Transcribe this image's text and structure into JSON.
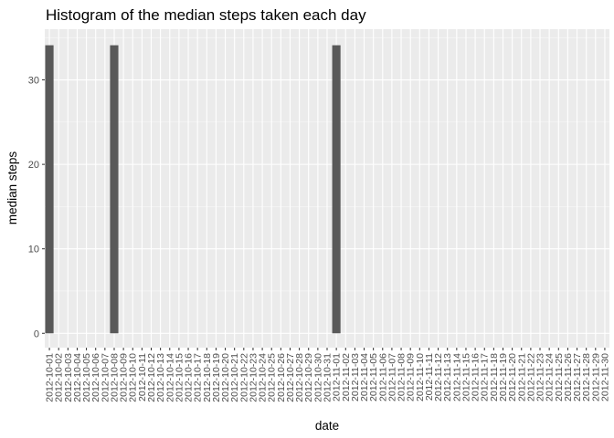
{
  "chart_data": {
    "type": "bar",
    "title": "Histogram of the median steps taken each day",
    "xlabel": "date",
    "ylabel": "median steps",
    "ylim": [
      -1.7,
      36.0
    ],
    "y_ticks": [
      0,
      10,
      20,
      30
    ],
    "grid": true,
    "legend": "none",
    "bar_color": "#595959",
    "panel_background": "#ebebeb",
    "grid_major_color": "#ffffff",
    "categories": [
      "2012-10-01",
      "2012-10-02",
      "2012-10-03",
      "2012-10-04",
      "2012-10-05",
      "2012-10-06",
      "2012-10-07",
      "2012-10-08",
      "2012-10-09",
      "2012-10-10",
      "2012-10-11",
      "2012-10-12",
      "2012-10-13",
      "2012-10-14",
      "2012-10-15",
      "2012-10-16",
      "2012-10-17",
      "2012-10-18",
      "2012-10-19",
      "2012-10-20",
      "2012-10-21",
      "2012-10-22",
      "2012-10-23",
      "2012-10-24",
      "2012-10-25",
      "2012-10-26",
      "2012-10-27",
      "2012-10-28",
      "2012-10-29",
      "2012-10-30",
      "2012-10-31",
      "2012-11-01",
      "2012-11-02",
      "2012-11-03",
      "2012-11-04",
      "2012-11-05",
      "2012-11-06",
      "2012-11-07",
      "2012-11-08",
      "2012-11-09",
      "2012-11-10",
      "2012-11-11",
      "2012-11-12",
      "2012-11-13",
      "2012-11-14",
      "2012-11-15",
      "2012-11-16",
      "2012-11-17",
      "2012-11-18",
      "2012-11-19",
      "2012-11-20",
      "2012-11-21",
      "2012-11-22",
      "2012-11-23",
      "2012-11-24",
      "2012-11-25",
      "2012-11-26",
      "2012-11-27",
      "2012-11-28",
      "2012-11-29",
      "2012-11-30"
    ],
    "values": [
      34.1,
      0,
      0,
      0,
      0,
      0,
      0,
      34.1,
      0,
      0,
      0,
      0,
      0,
      0,
      0,
      0,
      0,
      0,
      0,
      0,
      0,
      0,
      0,
      0,
      0,
      0,
      0,
      0,
      0,
      0,
      0,
      34.1,
      0,
      0,
      0,
      0,
      0,
      0,
      0,
      0,
      0,
      0,
      0,
      0,
      0,
      0,
      0,
      0,
      0,
      0,
      0,
      0,
      0,
      0,
      0,
      0,
      0,
      0,
      0,
      0,
      0
    ]
  }
}
